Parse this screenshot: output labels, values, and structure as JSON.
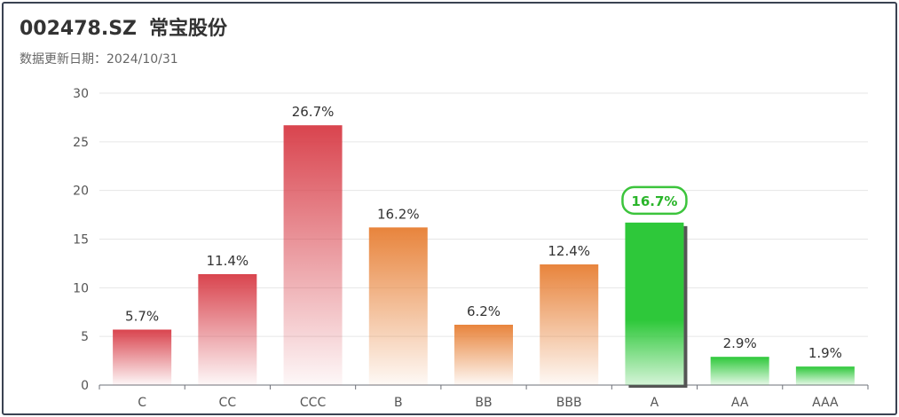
{
  "header": {
    "code": "002478.SZ",
    "name": "常宝股份",
    "update_label": "数据更新日期：2024/10/31"
  },
  "colors": {
    "red": "#d9444e",
    "orange": "#e8843c",
    "green": "#2ec83a",
    "highlight_border": "#3cc43c"
  },
  "chart_data": {
    "type": "bar",
    "categories": [
      "C",
      "CC",
      "CCC",
      "B",
      "BB",
      "BBB",
      "A",
      "AA",
      "AAA"
    ],
    "values": [
      5.7,
      11.4,
      26.7,
      16.2,
      6.2,
      12.4,
      16.7,
      2.9,
      1.9
    ],
    "data_labels": [
      "5.7%",
      "11.4%",
      "26.7%",
      "16.2%",
      "6.2%",
      "12.4%",
      "16.7%",
      "2.9%",
      "1.9%"
    ],
    "color_groups": [
      "red",
      "red",
      "red",
      "orange",
      "orange",
      "orange",
      "green",
      "green",
      "green"
    ],
    "highlighted": "A",
    "ylim": [
      0,
      30
    ],
    "yticks": [
      0,
      5,
      10,
      15,
      20,
      25,
      30
    ],
    "grid": true,
    "xlabel": "",
    "ylabel": ""
  }
}
